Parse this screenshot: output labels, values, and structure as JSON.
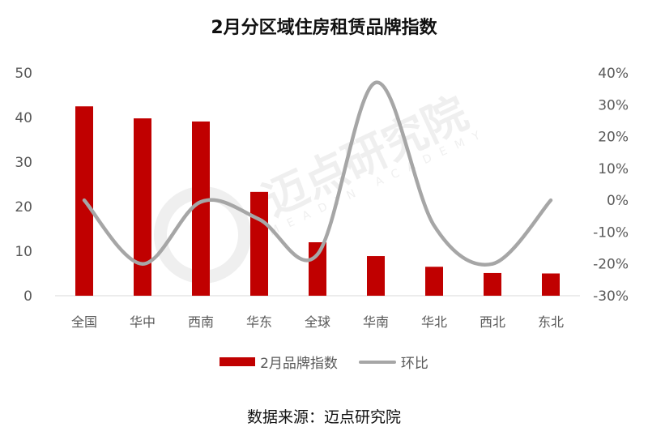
{
  "chart_data": {
    "type": "bar+line",
    "title": "2月分区域住房租赁品牌指数",
    "categories": [
      "全国",
      "华中",
      "西南",
      "华东",
      "全球",
      "华南",
      "华北",
      "西北",
      "东北"
    ],
    "series": [
      {
        "name": "2月品牌指数",
        "type": "bar",
        "axis": "left",
        "color": "#C00000",
        "values": [
          42.5,
          39.8,
          39.1,
          23.3,
          12.0,
          8.9,
          6.5,
          5.1,
          5.0
        ]
      },
      {
        "name": "环比",
        "type": "line",
        "axis": "right",
        "smooth": true,
        "color": "#A6A6A6",
        "values": [
          0,
          -20,
          -0.5,
          -6,
          -17,
          37,
          -8,
          -20,
          0
        ]
      }
    ],
    "y_left": {
      "min": 0,
      "max": 50,
      "ticks": [
        "0",
        "10",
        "20",
        "30",
        "40",
        "50"
      ]
    },
    "y_right": {
      "min": -30,
      "max": 40,
      "ticks": [
        "-30%",
        "-20%",
        "-10%",
        "0%",
        "10%",
        "20%",
        "30%",
        "40%"
      ]
    },
    "grid": false,
    "legend_position": "bottom"
  },
  "source": "数据来源：迈点研究院",
  "watermark": {
    "text": "迈点研究院",
    "sub": "MEADIN ACADEMY"
  }
}
